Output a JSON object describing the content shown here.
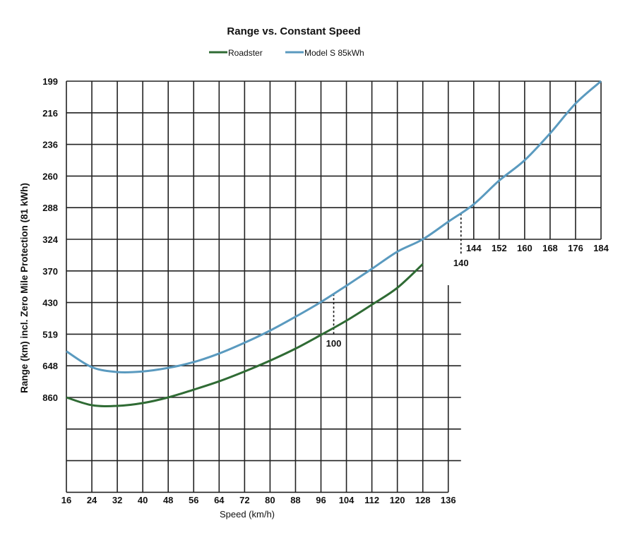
{
  "chart_data": {
    "type": "line",
    "title": "Range vs. Constant  Speed",
    "xlabel": "Speed (km/h)",
    "ylabel": "Range (km) incl. Zero Mile Protection (81 kWh)",
    "legend_position": "top-center",
    "grid": true,
    "y_ticks": [
      "199",
      "216",
      "236",
      "260",
      "288",
      "324",
      "370",
      "430",
      "519",
      "648",
      "860"
    ],
    "y_tick_values": [
      199,
      216,
      236,
      260,
      288,
      324,
      370,
      430,
      519,
      648,
      860
    ],
    "x_ticks_lower": [
      "16",
      "24",
      "32",
      "40",
      "48",
      "56",
      "64",
      "72",
      "80",
      "88",
      "96",
      "104",
      "112",
      "120",
      "128",
      "136"
    ],
    "x_ticks_upper": [
      "144",
      "152",
      "160",
      "168",
      "176",
      "184"
    ],
    "xlim": [
      16,
      184
    ],
    "annotations": [
      {
        "label": "100",
        "speed": 100
      },
      {
        "label": "140",
        "speed": 140
      }
    ],
    "series": [
      {
        "name": "Roadster",
        "color": "#2f6b34",
        "x": [
          16,
          24,
          32,
          40,
          48,
          56,
          64,
          72,
          80,
          88,
          96,
          104,
          112,
          120,
          128
        ],
        "y": [
          860,
          912,
          917,
          898,
          860,
          808,
          752,
          686,
          627,
          578,
          522,
          481,
          436,
          402,
          360
        ]
      },
      {
        "name": "Model S 85kWh",
        "color": "#5a9abf",
        "x": [
          16,
          24,
          32,
          40,
          48,
          56,
          64,
          72,
          80,
          88,
          96,
          104,
          112,
          120,
          128,
          136,
          144,
          152,
          160,
          168,
          176,
          184
        ],
        "y": [
          589,
          657,
          690,
          686,
          662,
          633,
          598,
          554,
          509,
          470,
          429,
          398,
          367,
          342,
          324,
          304,
          285,
          264,
          248,
          229,
          211,
          199
        ]
      }
    ]
  }
}
